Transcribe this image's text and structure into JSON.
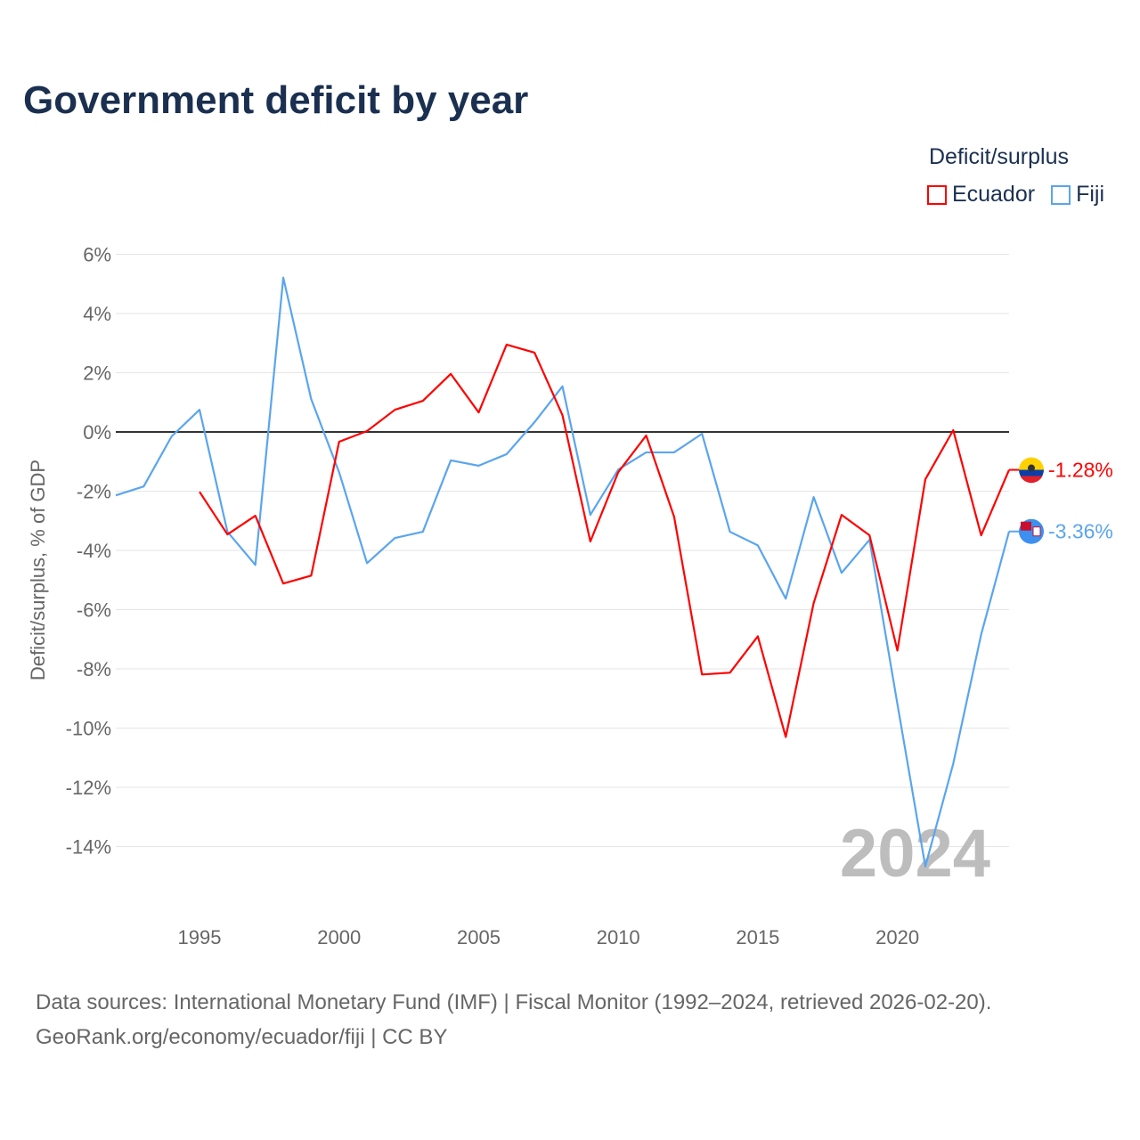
{
  "title": "Government deficit by year",
  "legend_title": "Deficit/surplus",
  "source_line1": "Data sources: International Monetary Fund (IMF) | Fiscal Monitor (1992–2024, retrieved 2026-02-20).",
  "source_line2": "GeoRank.org/economy/ecuador/fiji | CC BY",
  "chart_data": {
    "type": "line",
    "title": "Government deficit by year",
    "xlabel": "",
    "ylabel": "Deficit/surplus, % of GDP",
    "xlim": [
      1992,
      2024
    ],
    "ylim": [
      -16,
      6.5
    ],
    "yticks": [
      6,
      4,
      2,
      0,
      -2,
      -4,
      -6,
      -8,
      -10,
      -12,
      -14
    ],
    "ytick_labels": [
      "6%",
      "4%",
      "2%",
      "0%",
      "-2%",
      "-4%",
      "-6%",
      "-8%",
      "-10%",
      "-12%",
      "-14%"
    ],
    "xticks": [
      1995,
      2000,
      2005,
      2010,
      2015,
      2020
    ],
    "xtick_labels": [
      "1995",
      "2000",
      "2005",
      "2010",
      "2015",
      "2020"
    ],
    "year_label": "2024",
    "legend_placement": "top-right",
    "series": [
      {
        "name": "Ecuador",
        "color": "#ff0000",
        "end_label": "-1.28%",
        "flag": "ecuador-flag",
        "x": [
          1995,
          1996,
          1997,
          1998,
          1999,
          2000,
          2001,
          2002,
          2003,
          2004,
          2005,
          2006,
          2007,
          2008,
          2009,
          2010,
          2011,
          2012,
          2013,
          2014,
          2015,
          2016,
          2017,
          2018,
          2019,
          2020,
          2021,
          2022,
          2023,
          2024
        ],
        "values": [
          -2.02,
          -3.46,
          -2.83,
          -5.12,
          -4.85,
          -0.33,
          0.03,
          0.75,
          1.05,
          1.96,
          0.66,
          2.95,
          2.68,
          0.57,
          -3.7,
          -1.36,
          -0.12,
          -2.86,
          -8.19,
          -8.13,
          -6.9,
          -10.3,
          -5.78,
          -2.8,
          -3.49,
          -7.38,
          -1.6,
          0.06,
          -3.49,
          -1.28
        ]
      },
      {
        "name": "Fiji",
        "color": "#5aa5ee",
        "end_label": "-3.36%",
        "flag": "fiji-flag",
        "x": [
          1992,
          1993,
          1994,
          1995,
          1996,
          1997,
          1998,
          1999,
          2000,
          2001,
          2002,
          2003,
          2004,
          2005,
          2006,
          2007,
          2008,
          2009,
          2010,
          2011,
          2012,
          2013,
          2014,
          2015,
          2016,
          2017,
          2018,
          2019,
          2020,
          2021,
          2022,
          2023,
          2024
        ],
        "values": [
          -2.14,
          -1.84,
          -0.15,
          0.75,
          -3.37,
          -4.49,
          5.21,
          1.11,
          -1.36,
          -4.43,
          -3.58,
          -3.37,
          -0.96,
          -1.14,
          -0.75,
          0.33,
          1.54,
          -2.8,
          -1.27,
          -0.69,
          -0.69,
          -0.06,
          -3.37,
          -3.83,
          -5.63,
          -2.2,
          -4.76,
          -3.64,
          -9.19,
          -14.67,
          -11.2,
          -6.84,
          -3.36
        ]
      }
    ]
  }
}
